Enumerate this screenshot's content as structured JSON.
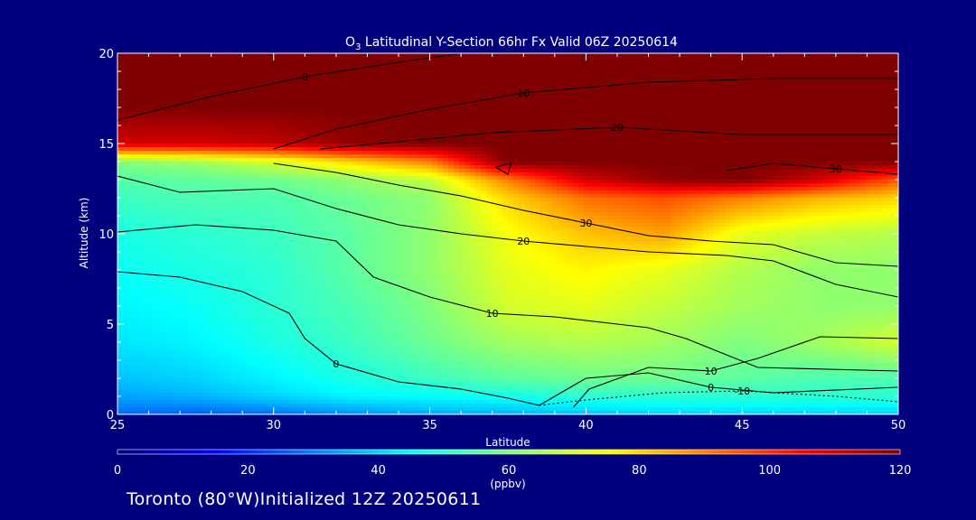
{
  "chart_data": {
    "type": "heatmap",
    "title": "O3 Latitudinal Y-Section 66hr  Fx Valid 06Z 20250614",
    "title_parts": {
      "main": "O",
      "sub": "3",
      "rest": " Latitudinal Y-Section 66hr  Fx Valid 06Z 20250614"
    },
    "xlabel": "Latitude",
    "ylabel": "Altitude (km)",
    "xlim": [
      25,
      50
    ],
    "ylim": [
      0,
      20
    ],
    "x_ticks": [
      25,
      30,
      35,
      40,
      45,
      50
    ],
    "y_ticks": [
      0,
      5,
      10,
      15,
      20
    ],
    "colorbar": {
      "label": "(ppbv)",
      "ticks": [
        0,
        20,
        40,
        60,
        80,
        100,
        120
      ],
      "range": [
        0,
        120
      ]
    },
    "field": {
      "description": "ozone mixing ratio (ppbv)",
      "lat": [
        25,
        27.5,
        30,
        32.5,
        35,
        37.5,
        40,
        42.5,
        45,
        47.5,
        50
      ],
      "alt": [
        0,
        1,
        2,
        4,
        6,
        8,
        10,
        12,
        13,
        14,
        15,
        17,
        20
      ],
      "values": [
        [
          28,
          26,
          28,
          32,
          35,
          36,
          38,
          40,
          40,
          40,
          40
        ],
        [
          34,
          36,
          40,
          44,
          45,
          47,
          50,
          50,
          50,
          50,
          50
        ],
        [
          38,
          40,
          44,
          48,
          52,
          56,
          58,
          58,
          56,
          54,
          54
        ],
        [
          42,
          44,
          48,
          52,
          58,
          64,
          66,
          64,
          60,
          64,
          70
        ],
        [
          44,
          46,
          50,
          54,
          60,
          70,
          72,
          68,
          64,
          62,
          62
        ],
        [
          46,
          48,
          50,
          56,
          62,
          72,
          76,
          72,
          66,
          62,
          62
        ],
        [
          48,
          50,
          52,
          56,
          62,
          74,
          82,
          86,
          72,
          68,
          66
        ],
        [
          52,
          54,
          54,
          58,
          62,
          80,
          92,
          96,
          90,
          84,
          80
        ],
        [
          55,
          56,
          58,
          62,
          68,
          90,
          110,
          118,
          120,
          110,
          95
        ],
        [
          60,
          64,
          70,
          80,
          90,
          120,
          120,
          120,
          120,
          120,
          120
        ],
        [
          110,
          110,
          112,
          118,
          120,
          120,
          120,
          120,
          120,
          120,
          120
        ],
        [
          120,
          120,
          120,
          120,
          120,
          120,
          120,
          120,
          120,
          120,
          120
        ],
        [
          120,
          120,
          120,
          120,
          120,
          120,
          120,
          120,
          120,
          120,
          120
        ]
      ]
    },
    "contours": [
      {
        "label": "0",
        "points": [
          [
            25,
            16.3
          ],
          [
            28,
            17.6
          ],
          [
            31,
            18.7
          ],
          [
            34,
            19.5
          ],
          [
            36,
            20
          ]
        ]
      },
      {
        "label": "10",
        "points": [
          [
            30,
            14.7
          ],
          [
            32,
            15.8
          ],
          [
            35,
            16.9
          ],
          [
            38,
            17.8
          ],
          [
            42,
            18.4
          ],
          [
            46,
            18.6
          ],
          [
            50,
            18.6
          ]
        ]
      },
      {
        "label": "20",
        "points": [
          [
            31.5,
            14.7
          ],
          [
            34,
            15.1
          ],
          [
            37,
            15.6
          ],
          [
            41,
            15.9
          ],
          [
            45,
            15.5
          ],
          [
            50,
            15.5
          ]
        ]
      },
      {
        "label": "30",
        "points": [
          [
            44.5,
            13.5
          ],
          [
            46,
            13.9
          ],
          [
            48,
            13.6
          ],
          [
            50,
            13.3
          ]
        ]
      },
      {
        "label": "-10",
        "points": [
          [
            38.5,
            0.5
          ],
          [
            40,
            0.8
          ],
          [
            42.5,
            1.2
          ],
          [
            45,
            1.3
          ],
          [
            48,
            1.0
          ],
          [
            50,
            0.7
          ]
        ]
      },
      {
        "label": "0",
        "points": [
          [
            38.5,
            0.5
          ],
          [
            40,
            2.0
          ],
          [
            42,
            2.3
          ],
          [
            44,
            1.5
          ],
          [
            46,
            1.2
          ],
          [
            50,
            1.5
          ]
        ]
      },
      {
        "label": "10",
        "points": [
          [
            39.6,
            0.4
          ],
          [
            40.1,
            1.4
          ],
          [
            42,
            2.6
          ],
          [
            44,
            2.4
          ],
          [
            45.5,
            3.1
          ],
          [
            47.5,
            4.3
          ],
          [
            50,
            4.2
          ]
        ]
      },
      {
        "label": "0",
        "points": [
          [
            25,
            7.9
          ],
          [
            27,
            7.6
          ],
          [
            29,
            6.8
          ],
          [
            30.5,
            5.6
          ],
          [
            31,
            4.2
          ],
          [
            32,
            2.8
          ],
          [
            34,
            1.8
          ],
          [
            36,
            1.4
          ],
          [
            37.5,
            0.9
          ],
          [
            38.5,
            0.5
          ]
        ]
      },
      {
        "label": "10",
        "points": [
          [
            25,
            10.1
          ],
          [
            27.5,
            10.5
          ],
          [
            30,
            10.2
          ],
          [
            32,
            9.6
          ],
          [
            33.2,
            7.6
          ],
          [
            35,
            6.5
          ],
          [
            37,
            5.6
          ],
          [
            39,
            5.4
          ],
          [
            41,
            5.0
          ],
          [
            42,
            4.8
          ],
          [
            43.2,
            4.2
          ],
          [
            45.5,
            2.6
          ],
          [
            50,
            2.4
          ]
        ]
      },
      {
        "label": "20",
        "points": [
          [
            25,
            13.2
          ],
          [
            27,
            12.3
          ],
          [
            30,
            12.5
          ],
          [
            32,
            11.4
          ],
          [
            34,
            10.5
          ],
          [
            36,
            10.0
          ],
          [
            38,
            9.6
          ],
          [
            40,
            9.3
          ],
          [
            42,
            9.0
          ],
          [
            44.5,
            8.8
          ],
          [
            46,
            8.5
          ],
          [
            48,
            7.2
          ],
          [
            50,
            6.5
          ]
        ]
      },
      {
        "label": "30",
        "points": [
          [
            30,
            13.9
          ],
          [
            32,
            13.4
          ],
          [
            34,
            12.7
          ],
          [
            36,
            12.1
          ],
          [
            38,
            11.3
          ],
          [
            40,
            10.6
          ],
          [
            42,
            9.9
          ],
          [
            44,
            9.6
          ],
          [
            46,
            9.4
          ],
          [
            48,
            8.4
          ],
          [
            50,
            8.2
          ]
        ]
      },
      {
        "label": "",
        "points": [
          [
            37.1,
            13.7
          ],
          [
            37.5,
            13.3
          ],
          [
            37.6,
            13.9
          ],
          [
            37.1,
            13.7
          ]
        ]
      }
    ]
  },
  "footer": {
    "text": "Toronto (80°W)Initialized 12Z 20250611"
  }
}
